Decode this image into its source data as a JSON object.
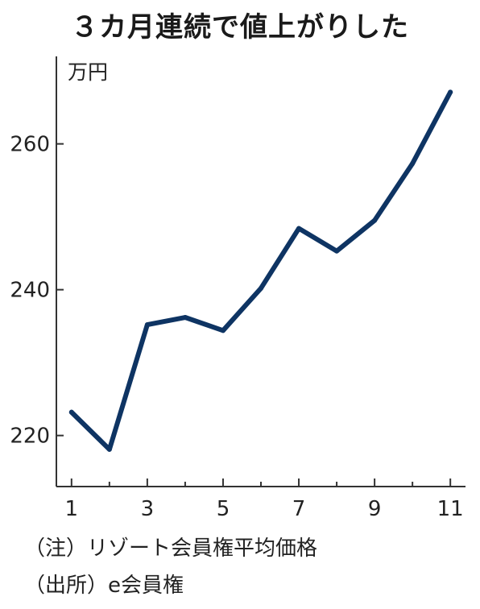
{
  "title": "３カ月連続で値上がりした",
  "unit_label": "万円",
  "notes": {
    "note": "（注）リゾート会員権平均価格",
    "source": "（出所）e会員権"
  },
  "colors": {
    "line": "#0e3463",
    "axis": "#333333",
    "text": "#222222"
  },
  "chart_data": {
    "type": "line",
    "ylabel": "万円",
    "xlabel": "",
    "x": [
      1,
      2,
      3,
      4,
      5,
      6,
      7,
      8,
      9,
      10,
      11
    ],
    "x_tick_labels": [
      "1",
      "3",
      "5",
      "7",
      "9",
      "11"
    ],
    "y_tick_labels": [
      "220",
      "240",
      "260"
    ],
    "y_ticks": [
      220,
      240,
      260
    ],
    "x_ticks": [
      1,
      3,
      5,
      7,
      9,
      11
    ],
    "xlim": [
      0.6,
      11.4
    ],
    "ylim": [
      213,
      272
    ],
    "grid": false,
    "series": [
      {
        "values": [
          223.2,
          218.1,
          235.2,
          236.2,
          234.4,
          240.2,
          248.4,
          245.3,
          249.5,
          257.3,
          267.1
        ]
      }
    ]
  }
}
